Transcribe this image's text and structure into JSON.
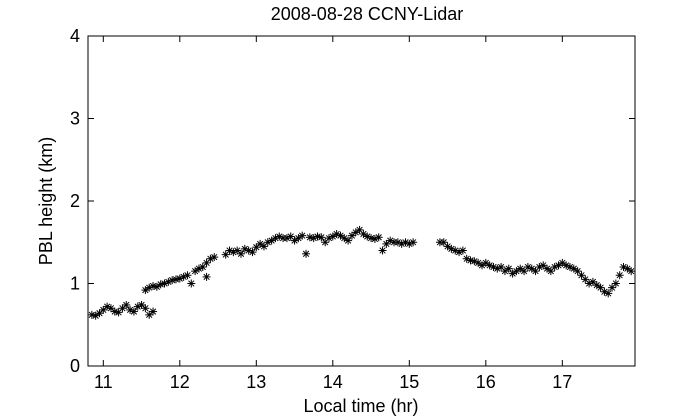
{
  "chart_data": {
    "type": "scatter",
    "title": "2008-08-28 CCNY-Lidar",
    "xlabel": "Local time (hr)",
    "ylabel": "PBL height (km)",
    "xlim": [
      10.8,
      17.95
    ],
    "ylim": [
      0,
      4
    ],
    "xticks": [
      "11",
      "12",
      "13",
      "14",
      "15",
      "16",
      "17"
    ],
    "yticks": [
      "0",
      "1",
      "2",
      "3",
      "4"
    ],
    "grid": false,
    "marker": "asterisk",
    "marker_color": "#000000",
    "series": [
      {
        "points": [
          [
            10.85,
            0.62
          ],
          [
            10.9,
            0.61
          ],
          [
            10.95,
            0.64
          ],
          [
            11.0,
            0.68
          ],
          [
            11.05,
            0.72
          ],
          [
            11.1,
            0.7
          ],
          [
            11.15,
            0.66
          ],
          [
            11.2,
            0.65
          ],
          [
            11.25,
            0.7
          ],
          [
            11.3,
            0.74
          ],
          [
            11.35,
            0.68
          ],
          [
            11.4,
            0.66
          ],
          [
            11.45,
            0.72
          ],
          [
            11.5,
            0.74
          ],
          [
            11.55,
            0.7
          ],
          [
            11.6,
            0.62
          ],
          [
            11.65,
            0.66
          ],
          [
            11.55,
            0.92
          ],
          [
            11.6,
            0.95
          ],
          [
            11.65,
            0.97
          ],
          [
            11.7,
            0.96
          ],
          [
            11.75,
            0.99
          ],
          [
            11.8,
            1.0
          ],
          [
            11.85,
            1.02
          ],
          [
            11.9,
            1.04
          ],
          [
            11.95,
            1.05
          ],
          [
            12.0,
            1.06
          ],
          [
            12.05,
            1.08
          ],
          [
            12.1,
            1.1
          ],
          [
            12.15,
            1.0
          ],
          [
            12.2,
            1.15
          ],
          [
            12.25,
            1.18
          ],
          [
            12.3,
            1.2
          ],
          [
            12.35,
            1.25
          ],
          [
            12.4,
            1.3
          ],
          [
            12.45,
            1.32
          ],
          [
            12.35,
            1.08
          ],
          [
            12.6,
            1.35
          ],
          [
            12.65,
            1.4
          ],
          [
            12.7,
            1.38
          ],
          [
            12.75,
            1.4
          ],
          [
            12.8,
            1.36
          ],
          [
            12.85,
            1.42
          ],
          [
            12.9,
            1.4
          ],
          [
            12.95,
            1.38
          ],
          [
            13.0,
            1.44
          ],
          [
            13.05,
            1.48
          ],
          [
            13.1,
            1.45
          ],
          [
            13.15,
            1.5
          ],
          [
            13.2,
            1.52
          ],
          [
            13.25,
            1.55
          ],
          [
            13.3,
            1.57
          ],
          [
            13.35,
            1.55
          ],
          [
            13.4,
            1.55
          ],
          [
            13.45,
            1.57
          ],
          [
            13.5,
            1.52
          ],
          [
            13.55,
            1.55
          ],
          [
            13.6,
            1.58
          ],
          [
            13.65,
            1.36
          ],
          [
            13.7,
            1.56
          ],
          [
            13.75,
            1.55
          ],
          [
            13.8,
            1.57
          ],
          [
            13.85,
            1.56
          ],
          [
            13.9,
            1.5
          ],
          [
            13.95,
            1.55
          ],
          [
            14.0,
            1.57
          ],
          [
            14.05,
            1.6
          ],
          [
            14.1,
            1.58
          ],
          [
            14.15,
            1.55
          ],
          [
            14.2,
            1.52
          ],
          [
            14.25,
            1.58
          ],
          [
            14.3,
            1.62
          ],
          [
            14.35,
            1.65
          ],
          [
            14.4,
            1.6
          ],
          [
            14.45,
            1.57
          ],
          [
            14.5,
            1.55
          ],
          [
            14.55,
            1.54
          ],
          [
            14.6,
            1.56
          ],
          [
            14.65,
            1.4
          ],
          [
            14.7,
            1.48
          ],
          [
            14.75,
            1.52
          ],
          [
            14.8,
            1.5
          ],
          [
            14.85,
            1.5
          ],
          [
            14.9,
            1.48
          ],
          [
            14.95,
            1.5
          ],
          [
            15.0,
            1.48
          ],
          [
            15.05,
            1.5
          ],
          [
            15.4,
            1.5
          ],
          [
            15.45,
            1.5
          ],
          [
            15.5,
            1.45
          ],
          [
            15.55,
            1.42
          ],
          [
            15.6,
            1.4
          ],
          [
            15.65,
            1.38
          ],
          [
            15.7,
            1.4
          ],
          [
            15.75,
            1.3
          ],
          [
            15.8,
            1.28
          ],
          [
            15.85,
            1.27
          ],
          [
            15.9,
            1.25
          ],
          [
            15.95,
            1.22
          ],
          [
            16.0,
            1.25
          ],
          [
            16.05,
            1.22
          ],
          [
            16.1,
            1.2
          ],
          [
            16.15,
            1.18
          ],
          [
            16.2,
            1.2
          ],
          [
            16.25,
            1.15
          ],
          [
            16.3,
            1.18
          ],
          [
            16.35,
            1.12
          ],
          [
            16.4,
            1.15
          ],
          [
            16.45,
            1.18
          ],
          [
            16.5,
            1.15
          ],
          [
            16.55,
            1.2
          ],
          [
            16.6,
            1.18
          ],
          [
            16.65,
            1.15
          ],
          [
            16.7,
            1.2
          ],
          [
            16.75,
            1.22
          ],
          [
            16.8,
            1.18
          ],
          [
            16.85,
            1.15
          ],
          [
            16.9,
            1.2
          ],
          [
            16.95,
            1.22
          ],
          [
            17.0,
            1.25
          ],
          [
            17.05,
            1.22
          ],
          [
            17.1,
            1.2
          ],
          [
            17.15,
            1.18
          ],
          [
            17.2,
            1.15
          ],
          [
            17.25,
            1.1
          ],
          [
            17.3,
            1.05
          ],
          [
            17.35,
            1.0
          ],
          [
            17.4,
            1.02
          ],
          [
            17.45,
            0.98
          ],
          [
            17.5,
            0.95
          ],
          [
            17.55,
            0.9
          ],
          [
            17.6,
            0.88
          ],
          [
            17.65,
            0.95
          ],
          [
            17.7,
            1.0
          ],
          [
            17.75,
            1.1
          ],
          [
            17.8,
            1.2
          ],
          [
            17.85,
            1.18
          ],
          [
            17.9,
            1.15
          ]
        ]
      }
    ]
  }
}
